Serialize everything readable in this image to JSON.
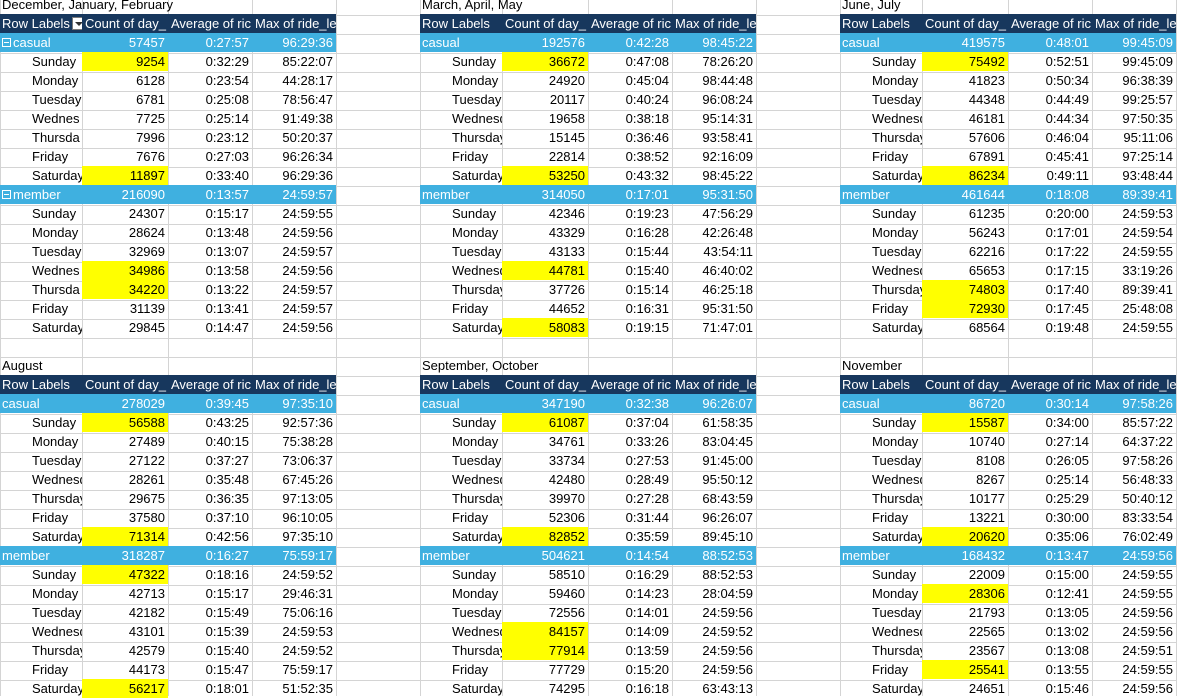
{
  "headers": {
    "row_labels": "Row Labels",
    "count": "Count of day_",
    "average": "Average of ric",
    "max": "Max of ride_le"
  },
  "pivots": [
    {
      "title": "December, January, February",
      "groups": [
        {
          "label": "casual",
          "count": "57457",
          "avg": "0:27:57",
          "max": "96:29:36",
          "rows": [
            {
              "day": "Sunday",
              "count": "9254",
              "avg": "0:32:29",
              "max": "85:22:07",
              "hl": true
            },
            {
              "day": "Monday",
              "count": "6128",
              "avg": "0:23:54",
              "max": "44:28:17",
              "hl": false
            },
            {
              "day": "Tuesday",
              "count": "6781",
              "avg": "0:25:08",
              "max": "78:56:47",
              "hl": false
            },
            {
              "day": "Wednes",
              "count": "7725",
              "avg": "0:25:14",
              "max": "91:49:38",
              "hl": false
            },
            {
              "day": "Thursda",
              "count": "7996",
              "avg": "0:23:12",
              "max": "50:20:37",
              "hl": false
            },
            {
              "day": "Friday",
              "count": "7676",
              "avg": "0:27:03",
              "max": "96:26:34",
              "hl": false
            },
            {
              "day": "Saturday",
              "count": "11897",
              "avg": "0:33:40",
              "max": "96:29:36",
              "hl": true
            }
          ]
        },
        {
          "label": "member",
          "count": "216090",
          "avg": "0:13:57",
          "max": "24:59:57",
          "rows": [
            {
              "day": "Sunday",
              "count": "24307",
              "avg": "0:15:17",
              "max": "24:59:55",
              "hl": false
            },
            {
              "day": "Monday",
              "count": "28624",
              "avg": "0:13:48",
              "max": "24:59:56",
              "hl": false
            },
            {
              "day": "Tuesday",
              "count": "32969",
              "avg": "0:13:07",
              "max": "24:59:57",
              "hl": false
            },
            {
              "day": "Wednes",
              "count": "34986",
              "avg": "0:13:58",
              "max": "24:59:56",
              "hl": true
            },
            {
              "day": "Thursda",
              "count": "34220",
              "avg": "0:13:22",
              "max": "24:59:57",
              "hl": true
            },
            {
              "day": "Friday",
              "count": "31139",
              "avg": "0:13:41",
              "max": "24:59:57",
              "hl": false
            },
            {
              "day": "Saturday",
              "count": "29845",
              "avg": "0:14:47",
              "max": "24:59:56",
              "hl": false
            }
          ]
        }
      ]
    },
    {
      "title": "March, April, May",
      "groups": [
        {
          "label": "casual",
          "count": "192576",
          "avg": "0:42:28",
          "max": "98:45:22",
          "rows": [
            {
              "day": "Sunday",
              "count": "36672",
              "avg": "0:47:08",
              "max": "78:26:20",
              "hl": true
            },
            {
              "day": "Monday",
              "count": "24920",
              "avg": "0:45:04",
              "max": "98:44:48",
              "hl": false
            },
            {
              "day": "Tuesday",
              "count": "20117",
              "avg": "0:40:24",
              "max": "96:08:24",
              "hl": false
            },
            {
              "day": "Wednesday",
              "count": "19658",
              "avg": "0:38:18",
              "max": "95:14:31",
              "hl": false
            },
            {
              "day": "Thursday",
              "count": "15145",
              "avg": "0:36:46",
              "max": "93:58:41",
              "hl": false
            },
            {
              "day": "Friday",
              "count": "22814",
              "avg": "0:38:52",
              "max": "92:16:09",
              "hl": false
            },
            {
              "day": "Saturday",
              "count": "53250",
              "avg": "0:43:32",
              "max": "98:45:22",
              "hl": true
            }
          ]
        },
        {
          "label": "member",
          "count": "314050",
          "avg": "0:17:01",
          "max": "95:31:50",
          "rows": [
            {
              "day": "Sunday",
              "count": "42346",
              "avg": "0:19:23",
              "max": "47:56:29",
              "hl": false
            },
            {
              "day": "Monday",
              "count": "43329",
              "avg": "0:16:28",
              "max": "42:26:48",
              "hl": false
            },
            {
              "day": "Tuesday",
              "count": "43133",
              "avg": "0:15:44",
              "max": "43:54:11",
              "hl": false
            },
            {
              "day": "Wednesday",
              "count": "44781",
              "avg": "0:15:40",
              "max": "46:40:02",
              "hl": true
            },
            {
              "day": "Thursday",
              "count": "37726",
              "avg": "0:15:14",
              "max": "46:25:18",
              "hl": false
            },
            {
              "day": "Friday",
              "count": "44652",
              "avg": "0:16:31",
              "max": "95:31:50",
              "hl": false
            },
            {
              "day": "Saturday",
              "count": "58083",
              "avg": "0:19:15",
              "max": "71:47:01",
              "hl": true
            }
          ]
        }
      ]
    },
    {
      "title": "June, July",
      "groups": [
        {
          "label": "casual",
          "count": "419575",
          "avg": "0:48:01",
          "max": "99:45:09",
          "rows": [
            {
              "day": "Sunday",
              "count": "75492",
              "avg": "0:52:51",
              "max": "99:45:09",
              "hl": true
            },
            {
              "day": "Monday",
              "count": "41823",
              "avg": "0:50:34",
              "max": "96:38:39",
              "hl": false
            },
            {
              "day": "Tuesday",
              "count": "44348",
              "avg": "0:44:49",
              "max": "99:25:57",
              "hl": false
            },
            {
              "day": "Wednesday",
              "count": "46181",
              "avg": "0:44:34",
              "max": "97:50:35",
              "hl": false
            },
            {
              "day": "Thursday",
              "count": "57606",
              "avg": "0:46:04",
              "max": "95:11:06",
              "hl": false
            },
            {
              "day": "Friday",
              "count": "67891",
              "avg": "0:45:41",
              "max": "97:25:14",
              "hl": false
            },
            {
              "day": "Saturday",
              "count": "86234",
              "avg": "0:49:11",
              "max": "93:48:44",
              "hl": true
            }
          ]
        },
        {
          "label": "member",
          "count": "461644",
          "avg": "0:18:08",
          "max": "89:39:41",
          "rows": [
            {
              "day": "Sunday",
              "count": "61235",
              "avg": "0:20:00",
              "max": "24:59:53",
              "hl": false
            },
            {
              "day": "Monday",
              "count": "56243",
              "avg": "0:17:01",
              "max": "24:59:54",
              "hl": false
            },
            {
              "day": "Tuesday",
              "count": "62216",
              "avg": "0:17:22",
              "max": "24:59:55",
              "hl": false
            },
            {
              "day": "Wednesday",
              "count": "65653",
              "avg": "0:17:15",
              "max": "33:19:26",
              "hl": false
            },
            {
              "day": "Thursday",
              "count": "74803",
              "avg": "0:17:40",
              "max": "89:39:41",
              "hl": true
            },
            {
              "day": "Friday",
              "count": "72930",
              "avg": "0:17:45",
              "max": "25:48:08",
              "hl": true
            },
            {
              "day": "Saturday",
              "count": "68564",
              "avg": "0:19:48",
              "max": "24:59:55",
              "hl": false
            }
          ]
        }
      ]
    },
    {
      "title": "August",
      "groups": [
        {
          "label": "casual",
          "count": "278029",
          "avg": "0:39:45",
          "max": "97:35:10",
          "rows": [
            {
              "day": "Sunday",
              "count": "56588",
              "avg": "0:43:25",
              "max": "92:57:36",
              "hl": true
            },
            {
              "day": "Monday",
              "count": "27489",
              "avg": "0:40:15",
              "max": "75:38:28",
              "hl": false
            },
            {
              "day": "Tuesday",
              "count": "27122",
              "avg": "0:37:27",
              "max": "73:06:37",
              "hl": false
            },
            {
              "day": "Wednesday",
              "count": "28261",
              "avg": "0:35:48",
              "max": "67:45:26",
              "hl": false
            },
            {
              "day": "Thursday",
              "count": "29675",
              "avg": "0:36:35",
              "max": "97:13:05",
              "hl": false
            },
            {
              "day": "Friday",
              "count": "37580",
              "avg": "0:37:10",
              "max": "96:10:05",
              "hl": false
            },
            {
              "day": "Saturday",
              "count": "71314",
              "avg": "0:42:56",
              "max": "97:35:10",
              "hl": true
            }
          ]
        },
        {
          "label": "member",
          "count": "318287",
          "avg": "0:16:27",
          "max": "75:59:17",
          "rows": [
            {
              "day": "Sunday",
              "count": "47322",
              "avg": "0:18:16",
              "max": "24:59:52",
              "hl": true
            },
            {
              "day": "Monday",
              "count": "42713",
              "avg": "0:15:17",
              "max": "29:46:31",
              "hl": false
            },
            {
              "day": "Tuesday",
              "count": "42182",
              "avg": "0:15:49",
              "max": "75:06:16",
              "hl": false
            },
            {
              "day": "Wednesday",
              "count": "43101",
              "avg": "0:15:39",
              "max": "24:59:53",
              "hl": false
            },
            {
              "day": "Thursday",
              "count": "42579",
              "avg": "0:15:40",
              "max": "24:59:52",
              "hl": false
            },
            {
              "day": "Friday",
              "count": "44173",
              "avg": "0:15:47",
              "max": "75:59:17",
              "hl": false
            },
            {
              "day": "Saturday",
              "count": "56217",
              "avg": "0:18:01",
              "max": "51:52:35",
              "hl": true
            }
          ]
        }
      ]
    },
    {
      "title": "September, October",
      "groups": [
        {
          "label": "casual",
          "count": "347190",
          "avg": "0:32:38",
          "max": "96:26:07",
          "rows": [
            {
              "day": "Sunday",
              "count": "61087",
              "avg": "0:37:04",
              "max": "61:58:35",
              "hl": true
            },
            {
              "day": "Monday",
              "count": "34761",
              "avg": "0:33:26",
              "max": "83:04:45",
              "hl": false
            },
            {
              "day": "Tuesday",
              "count": "33734",
              "avg": "0:27:53",
              "max": "91:45:00",
              "hl": false
            },
            {
              "day": "Wednesday",
              "count": "42480",
              "avg": "0:28:49",
              "max": "95:50:12",
              "hl": false
            },
            {
              "day": "Thursday",
              "count": "39970",
              "avg": "0:27:28",
              "max": "68:43:59",
              "hl": false
            },
            {
              "day": "Friday",
              "count": "52306",
              "avg": "0:31:44",
              "max": "96:26:07",
              "hl": false
            },
            {
              "day": "Saturday",
              "count": "82852",
              "avg": "0:35:59",
              "max": "89:45:10",
              "hl": true
            }
          ]
        },
        {
          "label": "member",
          "count": "504621",
          "avg": "0:14:54",
          "max": "88:52:53",
          "rows": [
            {
              "day": "Sunday",
              "count": "58510",
              "avg": "0:16:29",
              "max": "88:52:53",
              "hl": false
            },
            {
              "day": "Monday",
              "count": "59460",
              "avg": "0:14:23",
              "max": "28:04:59",
              "hl": false
            },
            {
              "day": "Tuesday",
              "count": "72556",
              "avg": "0:14:01",
              "max": "24:59:56",
              "hl": false
            },
            {
              "day": "Wednesday",
              "count": "84157",
              "avg": "0:14:09",
              "max": "24:59:52",
              "hl": true
            },
            {
              "day": "Thursday",
              "count": "77914",
              "avg": "0:13:59",
              "max": "24:59:56",
              "hl": true
            },
            {
              "day": "Friday",
              "count": "77729",
              "avg": "0:15:20",
              "max": "24:59:56",
              "hl": false
            },
            {
              "day": "Saturday",
              "count": "74295",
              "avg": "0:16:18",
              "max": "63:43:13",
              "hl": false
            }
          ]
        }
      ]
    },
    {
      "title": "November",
      "groups": [
        {
          "label": "casual",
          "count": "86720",
          "avg": "0:30:14",
          "max": "97:58:26",
          "rows": [
            {
              "day": "Sunday",
              "count": "15587",
              "avg": "0:34:00",
              "max": "85:57:22",
              "hl": true
            },
            {
              "day": "Monday",
              "count": "10740",
              "avg": "0:27:14",
              "max": "64:37:22",
              "hl": false
            },
            {
              "day": "Tuesday",
              "count": "8108",
              "avg": "0:26:05",
              "max": "97:58:26",
              "hl": false
            },
            {
              "day": "Wednesday",
              "count": "8267",
              "avg": "0:25:14",
              "max": "56:48:33",
              "hl": false
            },
            {
              "day": "Thursday",
              "count": "10177",
              "avg": "0:25:29",
              "max": "50:40:12",
              "hl": false
            },
            {
              "day": "Friday",
              "count": "13221",
              "avg": "0:30:00",
              "max": "83:33:54",
              "hl": false
            },
            {
              "day": "Saturday",
              "count": "20620",
              "avg": "0:35:06",
              "max": "76:02:49",
              "hl": true
            }
          ]
        },
        {
          "label": "member",
          "count": "168432",
          "avg": "0:13:47",
          "max": "24:59:56",
          "rows": [
            {
              "day": "Sunday",
              "count": "22009",
              "avg": "0:15:00",
              "max": "24:59:55",
              "hl": false
            },
            {
              "day": "Monday",
              "count": "28306",
              "avg": "0:12:41",
              "max": "24:59:55",
              "hl": true
            },
            {
              "day": "Tuesday",
              "count": "21793",
              "avg": "0:13:05",
              "max": "24:59:56",
              "hl": false
            },
            {
              "day": "Wednesday",
              "count": "22565",
              "avg": "0:13:02",
              "max": "24:59:56",
              "hl": false
            },
            {
              "day": "Thursday",
              "count": "23567",
              "avg": "0:13:08",
              "max": "24:59:51",
              "hl": false
            },
            {
              "day": "Friday",
              "count": "25541",
              "avg": "0:13:55",
              "max": "24:59:55",
              "hl": true
            },
            {
              "day": "Saturday",
              "count": "24651",
              "avg": "0:15:46",
              "max": "24:59:56",
              "hl": false
            }
          ]
        }
      ]
    }
  ],
  "colors": {
    "header_bg": "#17375d",
    "group_bg": "#3fb0e0",
    "highlight": "#ffff00",
    "gridline": "#d4d4d4"
  }
}
